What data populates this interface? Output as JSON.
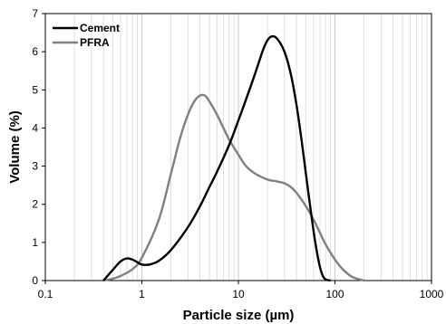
{
  "chart_data": {
    "type": "line",
    "title": "",
    "xlabel": "Particle size (µm)",
    "ylabel": "Volume (%)",
    "x_scale": "log",
    "xlim": [
      0.1,
      1000
    ],
    "ylim": [
      0,
      7
    ],
    "x_ticks": [
      "0.1",
      "1",
      "10",
      "100",
      "1000"
    ],
    "y_ticks": [
      "0",
      "1",
      "2",
      "3",
      "4",
      "5",
      "6",
      "7"
    ],
    "grid": "vertical minor gridlines (log scale)",
    "legend_position": "top-left",
    "series": [
      {
        "name": "Cement",
        "color": "#000000",
        "x": [
          0.4,
          0.5,
          0.6,
          0.7,
          0.8,
          0.9,
          1.0,
          1.2,
          1.5,
          2,
          3,
          4,
          5,
          6,
          8,
          10,
          12,
          15,
          18,
          20,
          22,
          25,
          30,
          35,
          40,
          45,
          50,
          55,
          60,
          65,
          70,
          75,
          80,
          90
        ],
        "y": [
          0.0,
          0.28,
          0.5,
          0.58,
          0.55,
          0.48,
          0.42,
          0.42,
          0.52,
          0.8,
          1.4,
          1.95,
          2.45,
          2.85,
          3.55,
          4.2,
          4.75,
          5.45,
          6.05,
          6.3,
          6.4,
          6.35,
          6.0,
          5.4,
          4.6,
          3.7,
          2.8,
          2.0,
          1.3,
          0.75,
          0.35,
          0.12,
          0.03,
          0.0
        ]
      },
      {
        "name": "PFRA",
        "color": "#808080",
        "x": [
          0.4,
          0.5,
          0.6,
          0.8,
          1.0,
          1.5,
          2,
          2.5,
          3,
          3.5,
          4,
          4.5,
          5,
          6,
          7,
          8,
          10,
          12,
          15,
          20,
          25,
          30,
          35,
          40,
          50,
          60,
          70,
          80,
          100,
          120,
          150,
          200
        ],
        "y": [
          0.0,
          0.05,
          0.12,
          0.3,
          0.6,
          1.6,
          2.8,
          3.75,
          4.35,
          4.7,
          4.85,
          4.85,
          4.7,
          4.35,
          4.0,
          3.7,
          3.3,
          3.0,
          2.8,
          2.65,
          2.6,
          2.55,
          2.45,
          2.3,
          1.95,
          1.6,
          1.25,
          0.95,
          0.55,
          0.3,
          0.1,
          0.0
        ]
      }
    ]
  }
}
